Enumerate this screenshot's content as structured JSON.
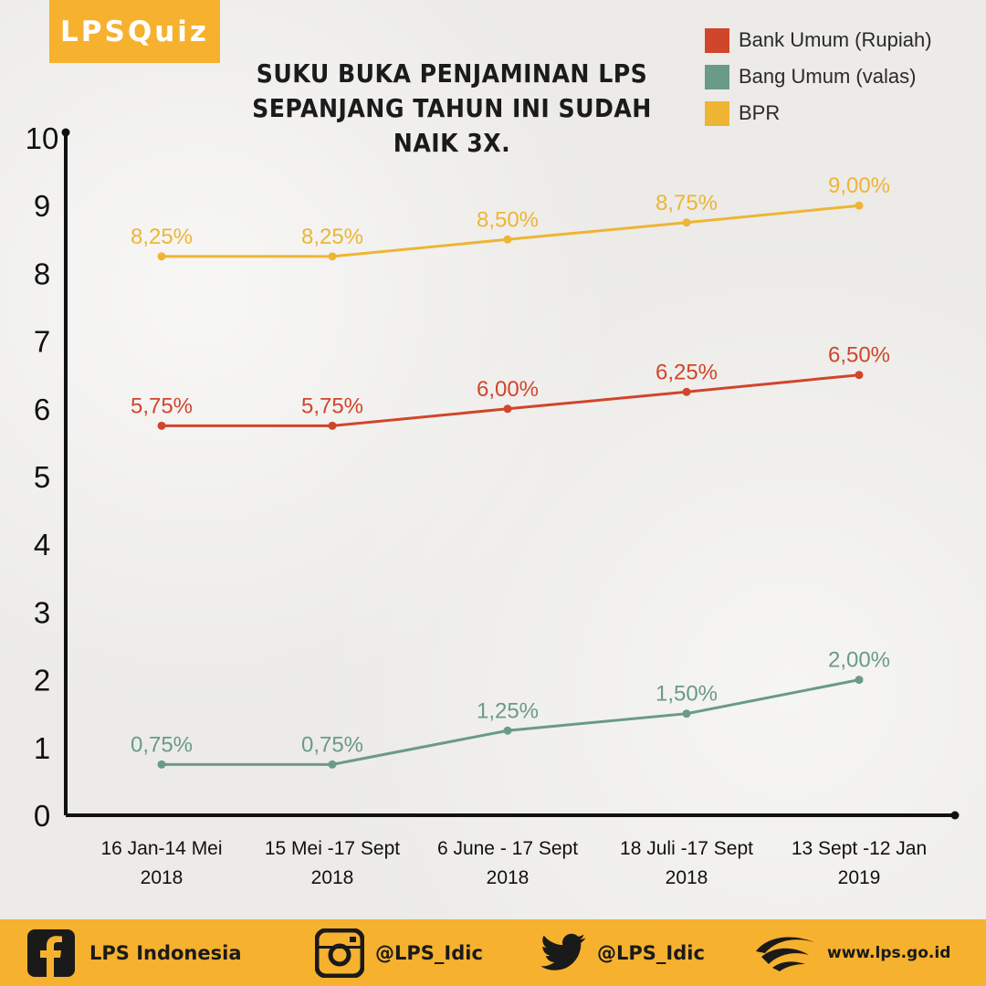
{
  "brand": {
    "badge": "LPSQuiz"
  },
  "title": {
    "line1": "SUKU BUKA PENJAMINAN LPS",
    "line2": "SEPANJANG TAHUN INI SUDAH NAIK 3X."
  },
  "colors": {
    "bank_umum": "#d1452b",
    "valas": "#6a9a88",
    "bpr": "#eeb534",
    "accent": "#f6b12f"
  },
  "chart_data": {
    "type": "line",
    "categories": [
      [
        "16 Jan-14 Mei",
        "2018"
      ],
      [
        "15 Mei -17 Sept",
        "2018"
      ],
      [
        "6 June - 17 Sept",
        "2018"
      ],
      [
        "18 Juli -17 Sept",
        "2018"
      ],
      [
        "13 Sept -12 Jan",
        "2019"
      ]
    ],
    "ylim": [
      0,
      10
    ],
    "yticks": [
      0,
      1,
      2,
      3,
      4,
      5,
      6,
      7,
      8,
      9,
      10
    ],
    "series": [
      {
        "name": "BPR",
        "color": "#eeb534",
        "values": [
          8.25,
          8.25,
          8.5,
          8.75,
          9.0
        ],
        "labels": [
          "8,25%",
          "8,25%",
          "8,50%",
          "8,75%",
          "9,00%"
        ]
      },
      {
        "name": "Bank Umum (Rupiah)",
        "color": "#d1452b",
        "values": [
          5.75,
          5.75,
          6.0,
          6.25,
          6.5
        ],
        "labels": [
          "5,75%",
          "5,75%",
          "6,00%",
          "6,25%",
          "6,50%"
        ]
      },
      {
        "name": "Bang Umum (valas)",
        "color": "#6a9a88",
        "values": [
          0.75,
          0.75,
          1.25,
          1.5,
          2.0
        ],
        "labels": [
          "0,75%",
          "0,75%",
          "1,25%",
          "1,50%",
          "2,00%"
        ]
      }
    ],
    "legend": [
      "Bank Umum (Rupiah)",
      "Bang Umum (valas)",
      "BPR"
    ],
    "legend_position": "top-right",
    "grid": false
  },
  "footer": {
    "facebook": "LPS Indonesia",
    "instagram": "@LPS_Idic",
    "twitter": "@LPS_Idic",
    "website": "www.lps.go.id"
  }
}
